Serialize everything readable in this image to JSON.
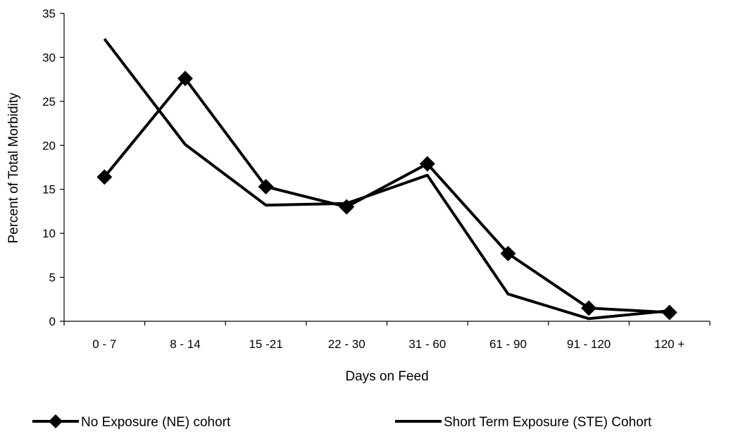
{
  "chart_data": {
    "type": "line",
    "title": "",
    "xlabel": "Days on Feed",
    "ylabel": "Percent of Total Morbidity",
    "categories": [
      "0 - 7",
      "8 - 14",
      "15 -21",
      "22 - 30",
      "31 - 60",
      "61 - 90",
      "91 - 120",
      "120 +"
    ],
    "ylim": [
      0,
      35
    ],
    "yticks": [
      0,
      5,
      10,
      15,
      20,
      25,
      30,
      35
    ],
    "grid": false,
    "legend_position": "bottom",
    "series": [
      {
        "name": "No Exposure (NE) cohort",
        "values": [
          16.4,
          27.6,
          15.3,
          13.0,
          17.9,
          7.7,
          1.5,
          1.0
        ],
        "color": "#000000",
        "marker": "diamond"
      },
      {
        "name": "Short Term Exposure (STE) Cohort",
        "values": [
          32.1,
          20.1,
          13.2,
          13.4,
          16.6,
          3.1,
          0.3,
          1.2
        ],
        "color": "#000000",
        "marker": "none"
      }
    ]
  }
}
